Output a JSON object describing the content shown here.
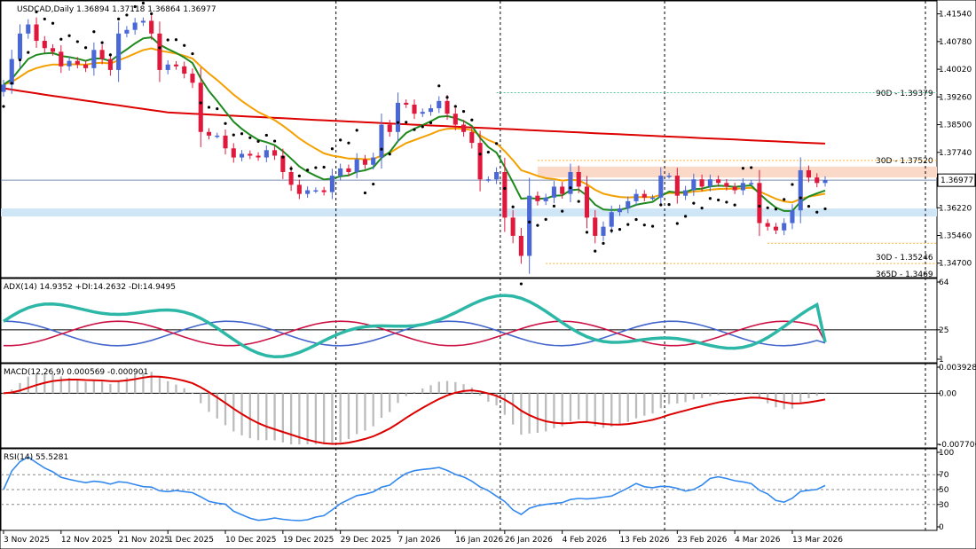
{
  "colors": {
    "bull": "#4a67d6",
    "bear": "#e0183c",
    "ma200": "#dd0000",
    "ma50": "#f4a000",
    "ma20": "#1e8a1e",
    "psar": "#000000",
    "adx": "#2cb7a6",
    "di_plus": "#4466cc",
    "di_minus": "#cc1144",
    "macd_hist": "#bbbbbb",
    "macd_signal": "#dd0000",
    "rsi": "#3388ee",
    "zone_resistance": "#fbd9c8",
    "zone_support": "#cfe6f7",
    "level_90d": "#2db38f",
    "level_30d": "#f4a000",
    "level_365d": "#f4a000"
  },
  "header": {
    "price_title": "USDCAD,Daily  1.36894  1.37118  1.36864  1.36977",
    "adx_title": "ADX(14) 14.9352 +DI:14.2632 -DI:14.9495",
    "macd_title": "MACD(12,26,9) 0.000569 -0.000901",
    "rsi_title": "RSI(14) 55.5281"
  },
  "price_axis": {
    "ticks": [
      "1.41540",
      "1.40780",
      "1.40020",
      "1.39260",
      "1.38500",
      "1.37740",
      "1.36980",
      "1.36220",
      "1.35460",
      "1.34700"
    ],
    "current": "1.36977"
  },
  "adx_axis": {
    "ticks": [
      "64",
      "25",
      "1"
    ]
  },
  "macd_axis": {
    "ticks": [
      "0.003928",
      "0.00",
      "-0.007706"
    ]
  },
  "rsi_axis": {
    "ticks": [
      "100",
      "70",
      "50",
      "30",
      "0"
    ]
  },
  "levels": {
    "l90d": "90D - 1.39379",
    "l30d": "30D - 1.37520",
    "l30d_low": "30D - 1.35246",
    "l365d": "365D - 1.3469"
  },
  "x_labels": [
    "3 Nov 2025",
    "12 Nov 2025",
    "21 Nov 2025",
    "1 Dec 2025",
    "10 Dec 2025",
    "19 Dec 2025",
    "29 Dec 2025",
    "7 Jan 2026",
    "16 Jan 2026",
    "26 Jan 2026",
    "4 Feb 2026",
    "13 Feb 2026",
    "23 Feb 2026",
    "4 Mar 2026",
    "13 Mar 2026"
  ],
  "chart_data": {
    "type": "candlestick",
    "symbol": "USDCAD",
    "timeframe": "Daily",
    "last_ohlc": {
      "open": 1.36894,
      "high": 1.37118,
      "low": 1.36864,
      "close": 1.36977
    },
    "ylim": [
      1.3445,
      1.4175
    ],
    "closes": [
      1.396,
      1.403,
      1.41,
      1.4125,
      1.408,
      1.406,
      1.405,
      1.401,
      1.4025,
      1.4015,
      1.4005,
      1.4055,
      1.403,
      1.4,
      1.41,
      1.411,
      1.413,
      1.4135,
      1.41,
      1.4,
      1.4015,
      1.401,
      1.399,
      1.3965,
      1.383,
      1.382,
      1.382,
      1.3785,
      1.376,
      1.377,
      1.3765,
      1.376,
      1.378,
      1.3765,
      1.372,
      1.3685,
      1.366,
      1.367,
      1.367,
      1.3665,
      1.371,
      1.373,
      1.372,
      1.3755,
      1.374,
      1.376,
      1.385,
      1.383,
      1.391,
      1.3905,
      1.388,
      1.3885,
      1.3895,
      1.3915,
      1.388,
      1.385,
      1.383,
      1.38,
      1.37,
      1.37,
      1.372,
      1.3595,
      1.3545,
      1.349,
      1.3655,
      1.364,
      1.365,
      1.368,
      1.366,
      1.372,
      1.368,
      1.3595,
      1.3545,
      1.357,
      1.361,
      1.362,
      1.364,
      1.366,
      1.365,
      1.365,
      1.371,
      1.371,
      1.3655,
      1.367,
      1.37,
      1.368,
      1.37,
      1.369,
      1.368,
      1.367,
      1.369,
      1.369,
      1.358,
      1.357,
      1.356,
      1.358,
      1.3615,
      1.3725,
      1.3705,
      1.369,
      1.3698
    ],
    "indicators": {
      "ma_periods": [
        20,
        50,
        200
      ],
      "adx": {
        "adx": 14.9352,
        "di_plus": 14.2632,
        "di_minus": 14.9495,
        "level": 25,
        "ylim": [
          1,
          64
        ]
      },
      "macd": {
        "fast": 12,
        "slow": 26,
        "signal": 9,
        "main": 0.000569,
        "signal_value": -0.000901,
        "ylim": [
          -0.007706,
          0.003928
        ]
      },
      "rsi": {
        "period": 14,
        "value": 55.5281,
        "levels": [
          70,
          50,
          30
        ],
        "ylim": [
          0,
          100
        ]
      }
    },
    "levels": {
      "90D": 1.39379,
      "30D_high": 1.3752,
      "30D_low": 1.35246,
      "365D": 1.3469
    },
    "zones": [
      {
        "from": 1.3705,
        "to": 1.3735
      },
      {
        "from": 1.3598,
        "to": 1.362
      }
    ]
  }
}
